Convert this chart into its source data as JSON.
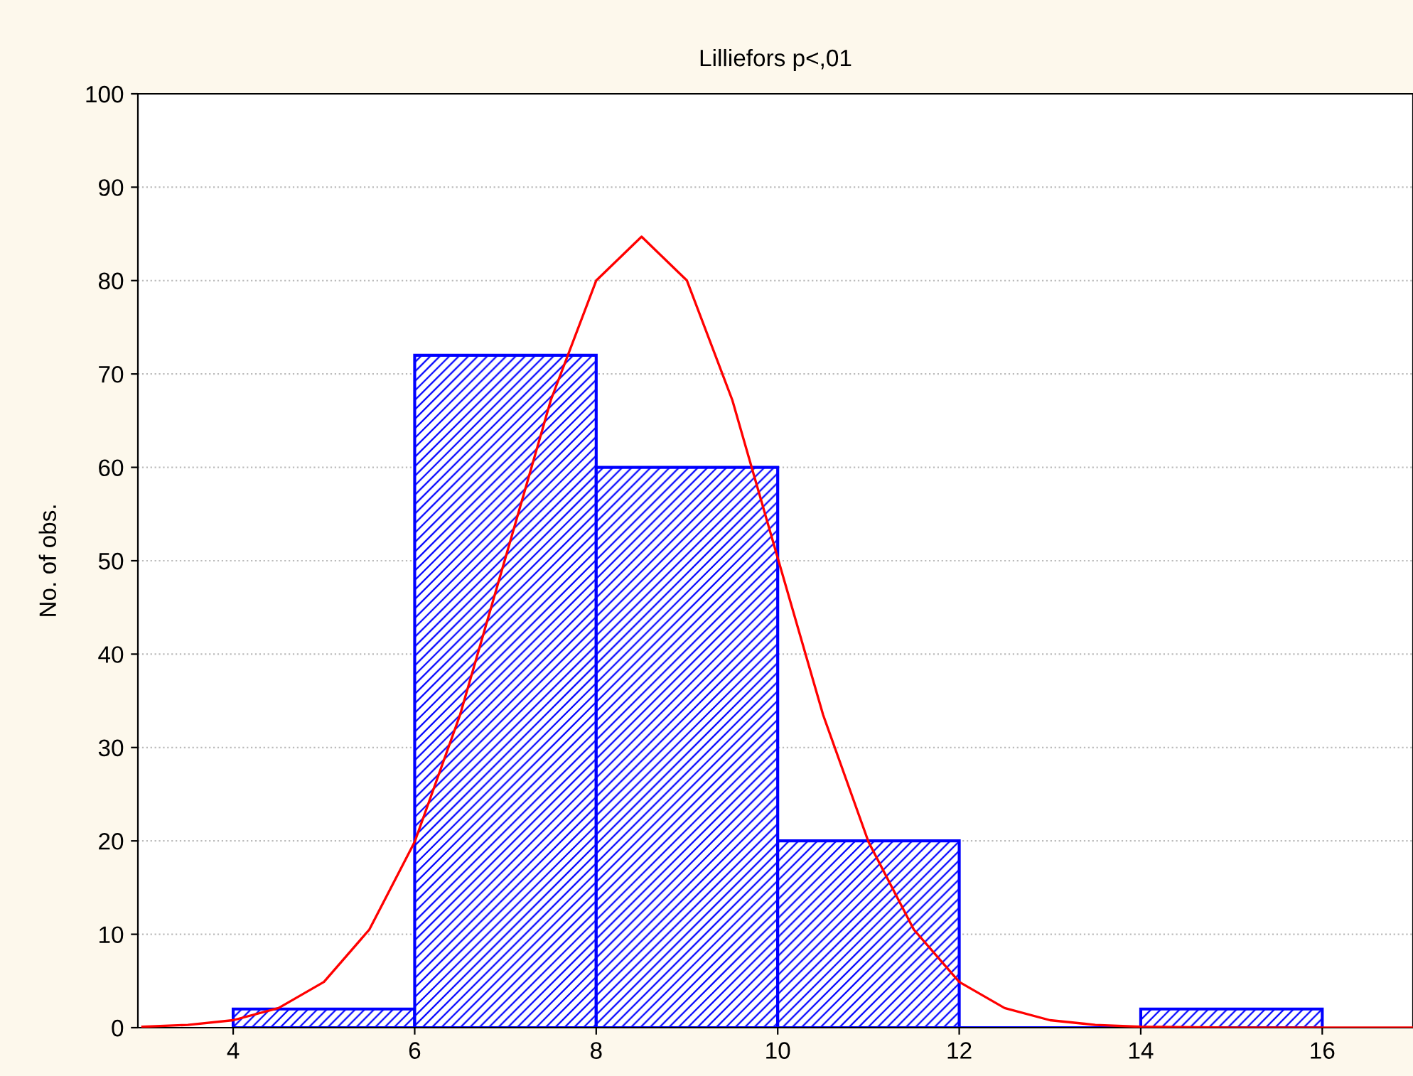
{
  "chart_data": {
    "type": "histogram",
    "title": "Lilliefors p<,01",
    "ylabel": "No. of obs.",
    "bins": [
      4,
      6,
      8,
      10,
      12,
      14,
      16
    ],
    "values": [
      2,
      72,
      60,
      20,
      0,
      2
    ],
    "color": "#0000ff",
    "series": [
      {
        "type": "line",
        "color": "#ff0000",
        "x": [
          3,
          3.5,
          4,
          4.5,
          5,
          5.5,
          6,
          6.5,
          7,
          7.5,
          8,
          8.5,
          9,
          9.5,
          10,
          10.5,
          11,
          11.5,
          12,
          12.5,
          13,
          13.5,
          14,
          15,
          16,
          17
        ],
        "values": [
          0.1,
          0.3,
          0.8,
          2.1,
          4.9,
          10.5,
          19.9,
          33.5,
          50.3,
          67.2,
          80.0,
          84.7,
          80.0,
          67.2,
          50.3,
          33.5,
          19.9,
          10.5,
          4.9,
          2.1,
          0.8,
          0.3,
          0.1,
          0,
          0,
          0
        ]
      }
    ],
    "xlim": [
      2.95,
      17
    ],
    "xticks": [
      4,
      6,
      8,
      10,
      12,
      14,
      16
    ],
    "ylim": [
      0,
      100
    ],
    "yticks": [
      0,
      10,
      20,
      30,
      40,
      50,
      60,
      70,
      80,
      90,
      100
    ],
    "grid": "y"
  }
}
